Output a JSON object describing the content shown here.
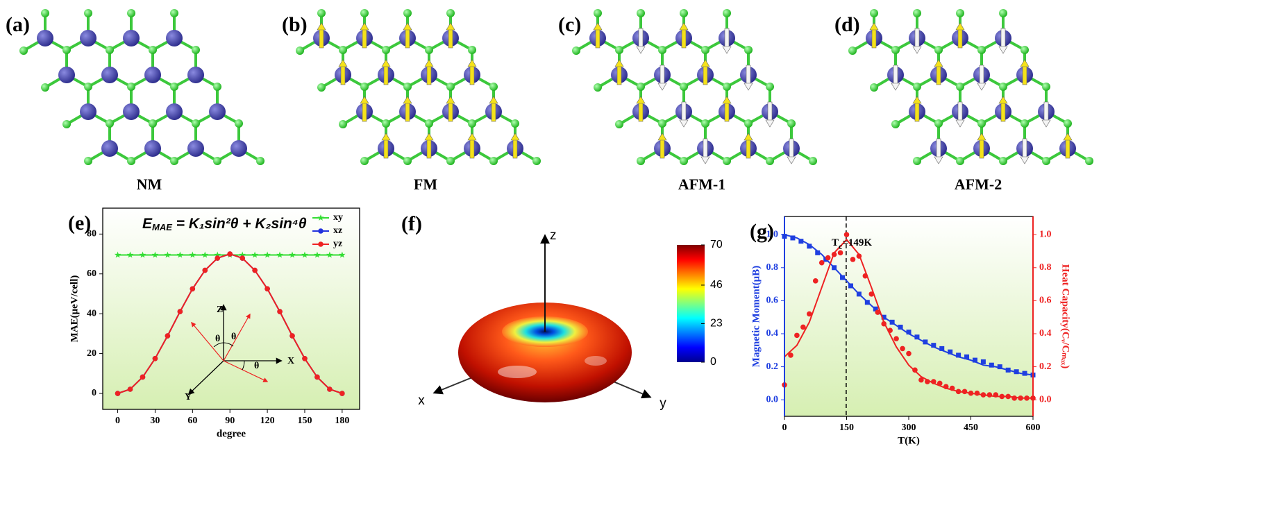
{
  "panels": [
    {
      "label": "(a)",
      "caption": "NM"
    },
    {
      "label": "(b)",
      "caption": "FM"
    },
    {
      "label": "(c)",
      "caption": "AFM-1"
    },
    {
      "label": "(d)",
      "caption": "AFM-2"
    }
  ],
  "chart_data": [
    {
      "type": "line",
      "label": "(e)",
      "formula": {
        "lhs": "E",
        "sub": "MAE",
        "rhs": " = K₁sin²θ + K₂sin⁴θ"
      },
      "xlabel": "degree",
      "ylabel": "MAE(μeV/cell)",
      "x": [
        0,
        10,
        20,
        30,
        40,
        50,
        60,
        70,
        80,
        90,
        100,
        110,
        120,
        130,
        140,
        150,
        160,
        170,
        180
      ],
      "xlim": [
        -12,
        194
      ],
      "ylim": [
        -8,
        93
      ],
      "xticks": [
        0,
        30,
        60,
        90,
        120,
        150,
        180
      ],
      "yticks": [
        0,
        20,
        40,
        60,
        80
      ],
      "legend": "upper right",
      "series": [
        {
          "name": "xy",
          "color": "#33dd33",
          "marker": "star",
          "values": [
            69.5,
            69.5,
            69.5,
            69.5,
            69.5,
            69.5,
            69.5,
            69.5,
            69.5,
            69.5,
            69.5,
            69.5,
            69.5,
            69.5,
            69.5,
            69.5,
            69.5,
            69.5,
            69.5
          ]
        },
        {
          "name": "xz",
          "color": "#2233dd",
          "marker": "circle",
          "values": [
            0,
            2.1,
            8.2,
            17.5,
            28.9,
            41.1,
            52.5,
            61.8,
            67.9,
            70,
            67.9,
            61.8,
            52.5,
            41.1,
            28.9,
            17.5,
            8.2,
            2.1,
            0
          ]
        },
        {
          "name": "yz",
          "color": "#ee2222",
          "marker": "circle",
          "values": [
            0,
            2.1,
            8.2,
            17.5,
            28.9,
            41.1,
            52.5,
            61.8,
            67.9,
            70,
            67.9,
            61.8,
            52.5,
            41.1,
            28.9,
            17.5,
            8.2,
            2.1,
            0
          ]
        }
      ],
      "inset": {
        "axes": [
          "Z",
          "X",
          "Y"
        ],
        "angles": [
          "θ",
          "θ",
          "θ"
        ]
      }
    },
    {
      "type": "surface3d",
      "label": "(f)",
      "axes": [
        "z",
        "x",
        "y"
      ],
      "clim": [
        0,
        70
      ],
      "cticks": [
        0,
        23,
        46,
        70
      ]
    },
    {
      "type": "dual_scatter",
      "label": "(g)",
      "xlabel": "T(K)",
      "ylabel": "Magnetic Moment(μB)",
      "y2label": "Heat Capacity(Cᵥ/Cₘₐₓ)",
      "annotation": {
        "main": "T",
        "sub": "c",
        "rest": "=149K"
      },
      "vline": 149,
      "xlim": [
        0,
        600
      ],
      "xticks": [
        0,
        150,
        300,
        450,
        600
      ],
      "ylim": [
        -0.1,
        1.11
      ],
      "yticks": [
        {
          "value": 0,
          "label": "0.0"
        },
        {
          "value": 0.2,
          "label": "0.2"
        },
        {
          "value": 0.4,
          "label": "0.4"
        },
        {
          "value": 0.6,
          "label": "0.6"
        },
        {
          "value": 0.8,
          "label": "0.8"
        },
        {
          "value": 1,
          "label": "1.0"
        }
      ],
      "y2lim": [
        -0.1,
        1.11
      ],
      "y2ticks": [
        {
          "value": 0,
          "label": "0.0"
        },
        {
          "value": 0.2,
          "label": "0.2"
        },
        {
          "value": 0.4,
          "label": "0.4"
        },
        {
          "value": 0.6,
          "label": "0.6"
        },
        {
          "value": 0.8,
          "label": "0.8"
        },
        {
          "value": 1,
          "label": "1.0"
        }
      ],
      "series": [
        {
          "color": "#1f3fe0",
          "marker": "square",
          "x": [
            0,
            20,
            40,
            60,
            80,
            100,
            120,
            140,
            160,
            180,
            200,
            220,
            240,
            260,
            280,
            300,
            320,
            340,
            360,
            380,
            400,
            420,
            440,
            460,
            480,
            500,
            520,
            540,
            560,
            580,
            600
          ],
          "values": [
            0.99,
            0.98,
            0.96,
            0.93,
            0.89,
            0.85,
            0.8,
            0.74,
            0.69,
            0.64,
            0.59,
            0.55,
            0.5,
            0.47,
            0.44,
            0.41,
            0.38,
            0.35,
            0.33,
            0.31,
            0.29,
            0.27,
            0.26,
            0.24,
            0.23,
            0.21,
            0.2,
            0.18,
            0.17,
            0.16,
            0.15
          ]
        },
        {
          "color": "#1f3fe0",
          "marker": "none",
          "x": [
            0,
            30,
            60,
            90,
            120,
            150,
            180,
            210,
            240,
            270,
            300,
            330,
            360,
            390,
            420,
            450,
            480,
            510,
            540,
            570,
            600
          ],
          "values": [
            1,
            0.98,
            0.94,
            0.88,
            0.8,
            0.72,
            0.64,
            0.57,
            0.5,
            0.45,
            0.4,
            0.36,
            0.32,
            0.29,
            0.26,
            0.24,
            0.21,
            0.2,
            0.18,
            0.16,
            0.15
          ]
        },
        {
          "color": "#ee2222",
          "marker": "circle",
          "axis": "y2",
          "x": [
            0,
            15,
            30,
            45,
            60,
            75,
            90,
            105,
            120,
            135,
            150,
            165,
            180,
            195,
            210,
            225,
            240,
            255,
            270,
            285,
            300,
            315,
            330,
            345,
            360,
            375,
            390,
            405,
            420,
            435,
            450,
            465,
            480,
            495,
            510,
            525,
            540,
            555,
            570,
            585,
            600
          ],
          "values": [
            0.09,
            0.27,
            0.39,
            0.44,
            0.52,
            0.72,
            0.83,
            0.86,
            0.88,
            0.89,
            1.0,
            0.85,
            0.87,
            0.75,
            0.64,
            0.53,
            0.46,
            0.42,
            0.37,
            0.31,
            0.28,
            0.18,
            0.12,
            0.11,
            0.11,
            0.1,
            0.08,
            0.07,
            0.05,
            0.05,
            0.04,
            0.04,
            0.03,
            0.03,
            0.03,
            0.02,
            0.02,
            0.01,
            0.01,
            0.01,
            0.01
          ]
        },
        {
          "color": "#ee2222",
          "marker": "none",
          "axis": "y2",
          "x": [
            0,
            30,
            60,
            90,
            120,
            150,
            180,
            210,
            240,
            270,
            300,
            330,
            360,
            390,
            420,
            450,
            480,
            510,
            540,
            570,
            600
          ],
          "values": [
            0.26,
            0.33,
            0.47,
            0.68,
            0.89,
            0.97,
            0.88,
            0.68,
            0.47,
            0.32,
            0.21,
            0.14,
            0.1,
            0.07,
            0.05,
            0.04,
            0.03,
            0.02,
            0.02,
            0.01,
            0.01
          ]
        }
      ]
    }
  ]
}
